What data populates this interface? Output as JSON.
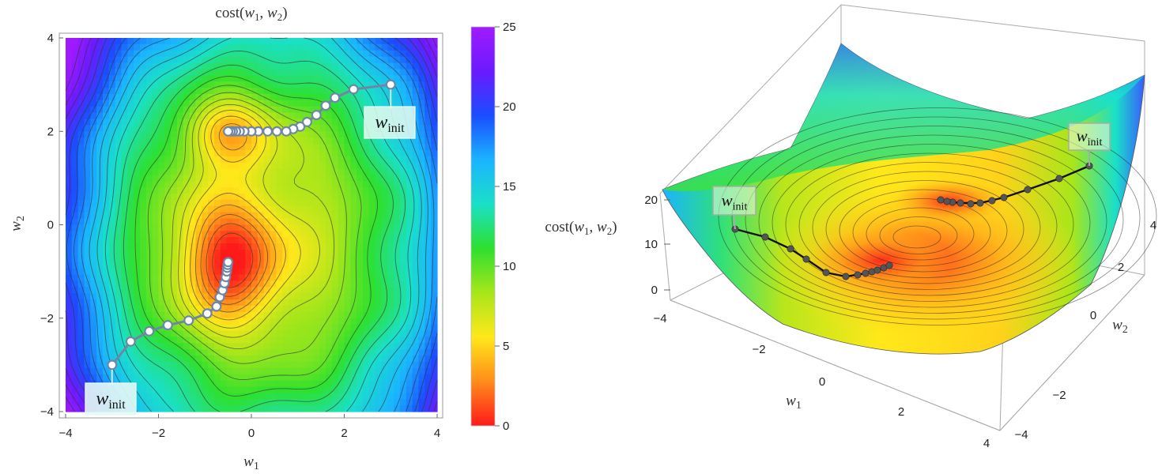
{
  "chart_data": [
    {
      "type": "heatmap",
      "title": "cost(w1, w2)",
      "title_parts": {
        "pre": "cost(",
        "v1": "w",
        "s1": "1",
        "sep": ", ",
        "v2": "w",
        "s2": "2",
        "post": ")"
      },
      "xlabel": {
        "var": "w",
        "sub": "1"
      },
      "ylabel": {
        "var": "w",
        "sub": "2"
      },
      "xlim": [
        -4,
        4
      ],
      "ylim": [
        -4,
        4
      ],
      "x_ticks": [
        -4,
        -2,
        0,
        2,
        4
      ],
      "y_ticks": [
        -4,
        -2,
        0,
        2,
        4
      ],
      "x_tick_labels": [
        "−4",
        "−2",
        "0",
        "2",
        "4"
      ],
      "y_tick_labels": [
        "−4",
        "−2",
        "0",
        "2",
        "4"
      ],
      "colorbar": {
        "range": [
          0,
          25
        ],
        "ticks": [
          0,
          5,
          10,
          15,
          20,
          25
        ],
        "tick_labels": [
          "0",
          "5",
          "10",
          "15",
          "20",
          "25"
        ],
        "colors": [
          "#ff1a1a",
          "#ff8c1a",
          "#ffe81a",
          "#a8e61a",
          "#2ee02e",
          "#1ae0c8",
          "#1ab4ff",
          "#1a4dff",
          "#6b1aff",
          "#a01aff"
        ]
      },
      "minima": [
        {
          "x": -0.5,
          "y": 2.0,
          "value": 2.0
        },
        {
          "x": -0.5,
          "y": -0.8,
          "value": 0.0
        }
      ],
      "series": [
        {
          "points": [
            [
              3.0,
              3.0
            ],
            [
              2.2,
              2.9
            ],
            [
              1.8,
              2.72
            ],
            [
              1.6,
              2.55
            ],
            [
              1.4,
              2.35
            ],
            [
              1.2,
              2.2
            ],
            [
              1.05,
              2.1
            ],
            [
              0.9,
              2.05
            ],
            [
              0.75,
              2.0
            ],
            [
              0.55,
              2.0
            ],
            [
              0.35,
              2.0
            ],
            [
              0.15,
              2.0
            ],
            [
              0.0,
              2.0
            ],
            [
              -0.15,
              2.0
            ],
            [
              -0.25,
              2.0
            ],
            [
              -0.33,
              2.0
            ],
            [
              -0.4,
              2.0
            ],
            [
              -0.45,
              2.0
            ],
            [
              -0.5,
              2.0
            ]
          ],
          "label": {
            "var": "w",
            "sub": "init"
          }
        },
        {
          "points": [
            [
              -3.0,
              -3.0
            ],
            [
              -2.6,
              -2.5
            ],
            [
              -2.2,
              -2.28
            ],
            [
              -1.8,
              -2.15
            ],
            [
              -1.35,
              -2.05
            ],
            [
              -0.95,
              -1.9
            ],
            [
              -0.75,
              -1.75
            ],
            [
              -0.68,
              -1.55
            ],
            [
              -0.62,
              -1.4
            ],
            [
              -0.58,
              -1.25
            ],
            [
              -0.55,
              -1.12
            ],
            [
              -0.53,
              -1.0
            ],
            [
              -0.52,
              -0.92
            ],
            [
              -0.51,
              -0.86
            ],
            [
              -0.5,
              -0.8
            ]
          ],
          "label": {
            "var": "w",
            "sub": "init"
          }
        }
      ]
    },
    {
      "type": "surface",
      "zlabel": "cost(w1, w2)",
      "zlabel_parts": {
        "pre": "cost(",
        "v1": "w",
        "s1": "1",
        "sep": ", ",
        "v2": "w",
        "s2": "2",
        "post": ")"
      },
      "xlabel": {
        "var": "w",
        "sub": "1"
      },
      "ylabel": {
        "var": "w",
        "sub": "2"
      },
      "x_tick_labels": [
        "−4",
        "−2",
        "0",
        "2",
        "4"
      ],
      "y_tick_labels": [
        "−4",
        "−2",
        "0",
        "2",
        "4"
      ],
      "z_tick_labels": [
        "0",
        "10",
        "20"
      ],
      "path_labels": [
        {
          "var": "w",
          "sub": "init"
        },
        {
          "var": "w",
          "sub": "init"
        }
      ]
    }
  ]
}
